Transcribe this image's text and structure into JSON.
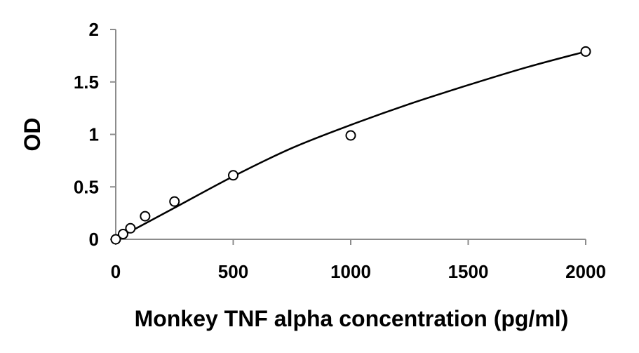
{
  "chart_data": {
    "type": "scatter",
    "title": "",
    "xlabel": "Monkey TNF alpha concentration (pg/ml)",
    "ylabel": "OD",
    "xlim": [
      0,
      2000
    ],
    "ylim": [
      0,
      2
    ],
    "x_ticks": [
      "0",
      "500",
      "1000",
      "1500",
      "2000"
    ],
    "y_ticks": [
      "0",
      "0.5",
      "1",
      "1.5",
      "2"
    ],
    "grid": false,
    "legend": "none",
    "series": [
      {
        "x": [
          0,
          31.25,
          62.5,
          125,
          250,
          500,
          1000,
          2000
        ],
        "y": [
          0.0,
          0.05,
          0.105,
          0.22,
          0.36,
          0.61,
          0.99,
          1.79
        ]
      }
    ],
    "fit_curve": {
      "x": [
        0,
        250,
        500,
        750,
        1000,
        1250,
        1500,
        1750,
        2000
      ],
      "y": [
        0.0,
        0.3,
        0.6,
        0.87,
        1.09,
        1.29,
        1.47,
        1.64,
        1.79
      ]
    }
  }
}
